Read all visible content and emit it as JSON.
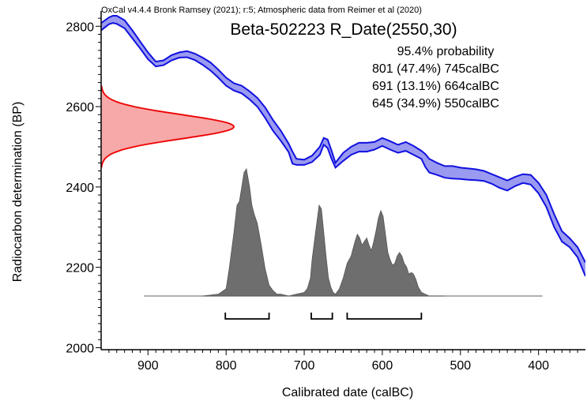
{
  "header": {
    "software_credit": "OxCal v4.4.4 Bronk Ramsey (2021); r:5; Atmospheric data from Reimer et al (2020)"
  },
  "chart_data": {
    "type": "area",
    "title": "Beta-502223 R_Date(2550,30)",
    "xlabel": "Calibrated date (calBC)",
    "ylabel": "Radiocarbon determination (BP)",
    "x_reversed": true,
    "xlim": [
      960,
      340
    ],
    "ylim": [
      1995,
      2830
    ],
    "x_ticks": [
      900,
      800,
      700,
      600,
      500,
      400
    ],
    "y_ticks": [
      2000,
      2200,
      2400,
      2600,
      2800
    ],
    "colors": {
      "calibration_curve_line": "#1010e0",
      "calibration_curve_fill": "#9a9af0",
      "radiocarbon_fill": "#f7a8a8",
      "radiocarbon_line": "#ee0000",
      "posterior_fill": "#6e6e6e",
      "range_bars": "#000000"
    },
    "probability": {
      "label": "95.4% probability",
      "ranges": [
        {
          "from": 801,
          "to": 745,
          "percent": "47.4%",
          "text": "801 (47.4%) 745calBC"
        },
        {
          "from": 691,
          "to": 664,
          "percent": "13.1%",
          "text": "691 (13.1%) 664calBC"
        },
        {
          "from": 645,
          "to": 550,
          "percent": "34.9%",
          "text": "645 (34.9%) 550calBC"
        }
      ]
    },
    "calibration_curve": {
      "x": [
        960,
        950,
        945,
        940,
        930,
        920,
        910,
        900,
        890,
        880,
        870,
        860,
        850,
        840,
        830,
        820,
        810,
        800,
        790,
        780,
        770,
        760,
        750,
        740,
        730,
        720,
        715,
        710,
        700,
        690,
        680,
        675,
        670,
        665,
        660,
        650,
        640,
        630,
        620,
        610,
        600,
        590,
        580,
        570,
        560,
        550,
        545,
        540,
        530,
        520,
        510,
        500,
        490,
        480,
        470,
        460,
        450,
        440,
        430,
        420,
        410,
        400,
        390,
        380,
        370,
        360,
        350,
        340
      ],
      "upper": [
        2808,
        2822,
        2826,
        2826,
        2815,
        2790,
        2762,
        2735,
        2712,
        2715,
        2728,
        2735,
        2738,
        2732,
        2722,
        2710,
        2692,
        2672,
        2658,
        2652,
        2638,
        2622,
        2598,
        2567,
        2540,
        2508,
        2488,
        2470,
        2468,
        2478,
        2500,
        2522,
        2518,
        2490,
        2460,
        2485,
        2500,
        2510,
        2510,
        2512,
        2522,
        2514,
        2505,
        2512,
        2502,
        2490,
        2482,
        2470,
        2460,
        2452,
        2452,
        2448,
        2446,
        2444,
        2440,
        2432,
        2424,
        2416,
        2425,
        2432,
        2430,
        2410,
        2380,
        2332,
        2290,
        2272,
        2250,
        2212
      ],
      "lower": [
        2790,
        2805,
        2808,
        2806,
        2795,
        2770,
        2745,
        2718,
        2700,
        2703,
        2715,
        2722,
        2723,
        2716,
        2704,
        2690,
        2672,
        2652,
        2640,
        2633,
        2618,
        2600,
        2572,
        2540,
        2515,
        2487,
        2458,
        2455,
        2455,
        2462,
        2480,
        2505,
        2497,
        2470,
        2448,
        2465,
        2480,
        2488,
        2488,
        2493,
        2502,
        2493,
        2485,
        2490,
        2480,
        2470,
        2450,
        2436,
        2430,
        2423,
        2421,
        2420,
        2418,
        2417,
        2415,
        2408,
        2398,
        2391,
        2402,
        2410,
        2406,
        2384,
        2350,
        2300,
        2264,
        2250,
        2225,
        2178
      ]
    },
    "radiocarbon_distribution": {
      "mean": 2550,
      "sigma": 30,
      "peak_x": 790
    },
    "posterior_distribution": {
      "baseline_x": [
        905,
        395
      ],
      "x": [
        830,
        810,
        800,
        796,
        790,
        786,
        783,
        780,
        777,
        774,
        772,
        770,
        767,
        764,
        760,
        755,
        750,
        745,
        740,
        735,
        730,
        720,
        710,
        700,
        696,
        692,
        690,
        687,
        684,
        681,
        678,
        675,
        672,
        669,
        666,
        663,
        660,
        655,
        650,
        645,
        640,
        635,
        632,
        629,
        626,
        623,
        620,
        617,
        614,
        611,
        608,
        605,
        602,
        599,
        596,
        593,
        590,
        587,
        584,
        581,
        578,
        575,
        572,
        569,
        566,
        563,
        560,
        557,
        554,
        550,
        545,
        540,
        530,
        520
      ],
      "y": [
        0,
        0.01,
        0.04,
        0.15,
        0.35,
        0.5,
        0.52,
        0.6,
        0.68,
        0.7,
        0.65,
        0.6,
        0.5,
        0.45,
        0.4,
        0.28,
        0.15,
        0.06,
        0.03,
        0.01,
        0.01,
        0.0,
        0.01,
        0.02,
        0.04,
        0.1,
        0.2,
        0.3,
        0.4,
        0.5,
        0.48,
        0.35,
        0.22,
        0.1,
        0.05,
        0.02,
        0.01,
        0.04,
        0.1,
        0.18,
        0.22,
        0.3,
        0.34,
        0.32,
        0.28,
        0.3,
        0.32,
        0.28,
        0.25,
        0.3,
        0.36,
        0.43,
        0.47,
        0.44,
        0.34,
        0.24,
        0.2,
        0.17,
        0.18,
        0.22,
        0.24,
        0.22,
        0.18,
        0.16,
        0.12,
        0.13,
        0.12,
        0.09,
        0.05,
        0.02,
        0.01,
        0.0,
        0.0,
        0.0
      ]
    }
  }
}
